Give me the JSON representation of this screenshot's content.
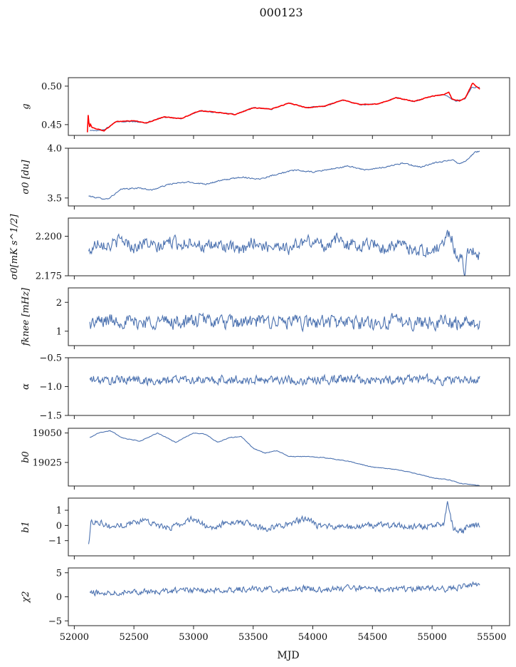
{
  "figure": {
    "title": "000123",
    "xlabel": "MJD"
  },
  "chart_data": [
    {
      "type": "line",
      "ylabel": "g",
      "ylabel_tex": "g",
      "xlim": [
        51950,
        55650
      ],
      "ylim": [
        0.436,
        0.511
      ],
      "yticks": [
        0.45,
        0.5
      ],
      "ytick_labels": [
        "0.45",
        "0.50"
      ],
      "series": [
        {
          "color": "#4c72b0",
          "points": [
            [
              52130,
              0.442
            ],
            [
              52250,
              0.443
            ],
            [
              52350,
              0.454
            ],
            [
              52500,
              0.454
            ],
            [
              52600,
              0.452
            ],
            [
              52750,
              0.46
            ],
            [
              52900,
              0.458
            ],
            [
              53050,
              0.468
            ],
            [
              53200,
              0.466
            ],
            [
              53350,
              0.463
            ],
            [
              53500,
              0.472
            ],
            [
              53650,
              0.47
            ],
            [
              53800,
              0.478
            ],
            [
              53950,
              0.472
            ],
            [
              54100,
              0.474
            ],
            [
              54250,
              0.482
            ],
            [
              54400,
              0.476
            ],
            [
              54550,
              0.477
            ],
            [
              54700,
              0.485
            ],
            [
              54850,
              0.48
            ],
            [
              55000,
              0.487
            ],
            [
              55100,
              0.489
            ],
            [
              55200,
              0.48
            ],
            [
              55280,
              0.484
            ],
            [
              55330,
              0.498
            ],
            [
              55400,
              0.499
            ]
          ]
        },
        {
          "color": "#ff0000",
          "points": [
            [
              52110,
              0.44
            ],
            [
              52118,
              0.468
            ],
            [
              52125,
              0.445
            ],
            [
              52135,
              0.451
            ],
            [
              52150,
              0.446
            ],
            [
              52250,
              0.442
            ],
            [
              52350,
              0.454
            ],
            [
              52500,
              0.455
            ],
            [
              52600,
              0.452
            ],
            [
              52750,
              0.46
            ],
            [
              52900,
              0.458
            ],
            [
              53050,
              0.468
            ],
            [
              53200,
              0.466
            ],
            [
              53350,
              0.463
            ],
            [
              53500,
              0.472
            ],
            [
              53650,
              0.47
            ],
            [
              53800,
              0.478
            ],
            [
              53950,
              0.472
            ],
            [
              54100,
              0.474
            ],
            [
              54250,
              0.482
            ],
            [
              54400,
              0.476
            ],
            [
              54550,
              0.477
            ],
            [
              54700,
              0.485
            ],
            [
              54850,
              0.48
            ],
            [
              55000,
              0.487
            ],
            [
              55100,
              0.489
            ],
            [
              55140,
              0.492
            ],
            [
              55170,
              0.483
            ],
            [
              55230,
              0.481
            ],
            [
              55280,
              0.485
            ],
            [
              55340,
              0.504
            ],
            [
              55400,
              0.496
            ]
          ]
        }
      ]
    },
    {
      "type": "line",
      "ylabel": "σ0 [du]",
      "xlim": [
        51950,
        55650
      ],
      "ylim": [
        3.42,
        4.0
      ],
      "yticks": [
        3.5,
        4.0
      ],
      "ytick_labels": [
        "3.5",
        "4.0"
      ],
      "series": [
        {
          "color": "#4c72b0",
          "points": [
            [
              52120,
              3.52
            ],
            [
              52200,
              3.5
            ],
            [
              52280,
              3.49
            ],
            [
              52400,
              3.59
            ],
            [
              52550,
              3.6
            ],
            [
              52650,
              3.58
            ],
            [
              52800,
              3.64
            ],
            [
              52950,
              3.66
            ],
            [
              53100,
              3.64
            ],
            [
              53250,
              3.68
            ],
            [
              53400,
              3.71
            ],
            [
              53550,
              3.69
            ],
            [
              53700,
              3.74
            ],
            [
              53850,
              3.78
            ],
            [
              54000,
              3.76
            ],
            [
              54150,
              3.79
            ],
            [
              54300,
              3.82
            ],
            [
              54450,
              3.78
            ],
            [
              54600,
              3.81
            ],
            [
              54750,
              3.85
            ],
            [
              54900,
              3.81
            ],
            [
              55050,
              3.86
            ],
            [
              55120,
              3.87
            ],
            [
              55170,
              3.89
            ],
            [
              55230,
              3.84
            ],
            [
              55300,
              3.89
            ],
            [
              55360,
              3.96
            ],
            [
              55400,
              3.97
            ]
          ]
        }
      ]
    },
    {
      "type": "line",
      "ylabel": "σ0[mK s^1/2]",
      "xlim": [
        51950,
        55650
      ],
      "ylim": [
        2.175,
        2.2115
      ],
      "yticks": [
        2.175,
        2.2
      ],
      "ytick_labels": [
        "2.175",
        "2.200"
      ],
      "series": [
        {
          "color": "#4c72b0",
          "points": [
            [
              52120,
              2.1895
            ],
            [
              52200,
              2.197
            ],
            [
              52300,
              2.194
            ],
            [
              52400,
              2.198
            ],
            [
              52500,
              2.193
            ],
            [
              52600,
              2.196
            ],
            [
              52700,
              2.192
            ],
            [
              52800,
              2.197
            ],
            [
              52900,
              2.195
            ],
            [
              53000,
              2.197
            ],
            [
              53100,
              2.192
            ],
            [
              53200,
              2.195
            ],
            [
              53300,
              2.193
            ],
            [
              53400,
              2.19
            ],
            [
              53500,
              2.197
            ],
            [
              53600,
              2.193
            ],
            [
              53700,
              2.195
            ],
            [
              53800,
              2.192
            ],
            [
              53900,
              2.196
            ],
            [
              54000,
              2.197
            ],
            [
              54100,
              2.194
            ],
            [
              54200,
              2.198
            ],
            [
              54300,
              2.195
            ],
            [
              54400,
              2.194
            ],
            [
              54500,
              2.196
            ],
            [
              54600,
              2.192
            ],
            [
              54700,
              2.195
            ],
            [
              54800,
              2.193
            ],
            [
              54900,
              2.191
            ],
            [
              55000,
              2.19
            ],
            [
              55100,
              2.196
            ],
            [
              55150,
              2.203
            ],
            [
              55200,
              2.189
            ],
            [
              55250,
              2.185
            ],
            [
              55270,
              2.175
            ],
            [
              55300,
              2.193
            ],
            [
              55400,
              2.187
            ]
          ]
        }
      ]
    },
    {
      "type": "line",
      "ylabel": "fknee [mHz]",
      "xlim": [
        51950,
        55650
      ],
      "ylim": [
        0.5,
        2.5
      ],
      "yticks": [
        1,
        2
      ],
      "ytick_labels": [
        "1",
        "2"
      ],
      "series": [
        {
          "color": "#4c72b0",
          "points": [
            [
              52130,
              1.25
            ],
            [
              52300,
              1.4
            ],
            [
              52500,
              1.3
            ],
            [
              52700,
              1.35
            ],
            [
              52900,
              1.3
            ],
            [
              53100,
              1.4
            ],
            [
              53300,
              1.28
            ],
            [
              53500,
              1.32
            ],
            [
              53700,
              1.35
            ],
            [
              53900,
              1.28
            ],
            [
              54100,
              1.33
            ],
            [
              54300,
              1.3
            ],
            [
              54500,
              1.27
            ],
            [
              54700,
              1.35
            ],
            [
              54900,
              1.3
            ],
            [
              55100,
              1.32
            ],
            [
              55300,
              1.28
            ],
            [
              55400,
              1.3
            ]
          ]
        }
      ]
    },
    {
      "type": "line",
      "ylabel": "α",
      "xlim": [
        51950,
        55650
      ],
      "ylim": [
        -1.5,
        -0.5
      ],
      "yticks": [
        -1.5,
        -1.0,
        -0.5
      ],
      "ytick_labels": [
        "−1.5",
        "−1.0",
        "−0.5"
      ],
      "series": [
        {
          "color": "#4c72b0",
          "points": [
            [
              52130,
              -0.88
            ],
            [
              52300,
              -0.9
            ],
            [
              52500,
              -0.87
            ],
            [
              52700,
              -0.92
            ],
            [
              52900,
              -0.86
            ],
            [
              53100,
              -0.9
            ],
            [
              53300,
              -0.88
            ],
            [
              53500,
              -0.89
            ],
            [
              53700,
              -0.87
            ],
            [
              53900,
              -0.9
            ],
            [
              54100,
              -0.88
            ],
            [
              54300,
              -0.87
            ],
            [
              54500,
              -0.9
            ],
            [
              54700,
              -0.88
            ],
            [
              54900,
              -0.86
            ],
            [
              55100,
              -0.9
            ],
            [
              55300,
              -0.88
            ],
            [
              55400,
              -0.89
            ]
          ]
        }
      ]
    },
    {
      "type": "line",
      "ylabel": "b0",
      "xlim": [
        51950,
        55650
      ],
      "ylim": [
        19005,
        19054
      ],
      "yticks": [
        19025,
        19050
      ],
      "ytick_labels": [
        "19025",
        "19050"
      ],
      "series": [
        {
          "color": "#4c72b0",
          "points": [
            [
              52130,
              19046
            ],
            [
              52200,
              19050
            ],
            [
              52300,
              19052
            ],
            [
              52400,
              19046
            ],
            [
              52550,
              19043
            ],
            [
              52700,
              19050
            ],
            [
              52850,
              19042
            ],
            [
              53000,
              19050
            ],
            [
              53100,
              19049
            ],
            [
              53200,
              19042
            ],
            [
              53300,
              19046
            ],
            [
              53400,
              19047
            ],
            [
              53500,
              19037
            ],
            [
              53600,
              19033
            ],
            [
              53700,
              19035
            ],
            [
              53800,
              19030
            ],
            [
              53950,
              19030
            ],
            [
              54100,
              19029
            ],
            [
              54300,
              19026
            ],
            [
              54500,
              19021
            ],
            [
              54700,
              19019
            ],
            [
              54850,
              19016
            ],
            [
              55000,
              19012
            ],
            [
              55150,
              19010
            ],
            [
              55250,
              19007
            ],
            [
              55350,
              19006
            ],
            [
              55400,
              19005
            ]
          ]
        }
      ]
    },
    {
      "type": "line",
      "ylabel": "b1",
      "xlim": [
        51950,
        55650
      ],
      "ylim": [
        -2.0,
        1.8
      ],
      "yticks": [
        -1,
        0,
        1
      ],
      "ytick_labels": [
        "−1",
        "0",
        "1"
      ],
      "series": [
        {
          "color": "#4c72b0",
          "points": [
            [
              52120,
              -1.3
            ],
            [
              52140,
              0.2
            ],
            [
              52200,
              0.3
            ],
            [
              52300,
              -0.1
            ],
            [
              52450,
              0.1
            ],
            [
              52600,
              0.4
            ],
            [
              52750,
              -0.2
            ],
            [
              52900,
              0.1
            ],
            [
              53000,
              0.5
            ],
            [
              53150,
              -0.3
            ],
            [
              53300,
              0.3
            ],
            [
              53450,
              0.1
            ],
            [
              53600,
              -0.2
            ],
            [
              53750,
              0.0
            ],
            [
              53950,
              0.5
            ],
            [
              54050,
              -0.1
            ],
            [
              54300,
              -0.1
            ],
            [
              54500,
              0.0
            ],
            [
              54700,
              0.0
            ],
            [
              54900,
              -0.1
            ],
            [
              55100,
              0.1
            ],
            [
              55130,
              1.5
            ],
            [
              55180,
              -0.3
            ],
            [
              55260,
              -0.4
            ],
            [
              55300,
              0.0
            ],
            [
              55400,
              0.0
            ]
          ]
        }
      ]
    },
    {
      "type": "line",
      "ylabel": "χ2",
      "xlim": [
        51950,
        55650
      ],
      "ylim": [
        -6,
        6
      ],
      "yticks": [
        -5,
        0,
        5
      ],
      "ytick_labels": [
        "−5",
        "0",
        "5"
      ],
      "xticks": [
        52000,
        52500,
        53000,
        53500,
        54000,
        54500,
        55000,
        55500
      ],
      "xtick_labels": [
        "52000",
        "52500",
        "53000",
        "53500",
        "54000",
        "54500",
        "55000",
        "55500"
      ],
      "series": [
        {
          "color": "#4c72b0",
          "points": [
            [
              52130,
              0.8
            ],
            [
              52300,
              0.9
            ],
            [
              52500,
              1.2
            ],
            [
              52700,
              0.9
            ],
            [
              52900,
              1.5
            ],
            [
              53100,
              1.2
            ],
            [
              53300,
              1.5
            ],
            [
              53500,
              1.7
            ],
            [
              53700,
              1.4
            ],
            [
              53900,
              1.8
            ],
            [
              54100,
              1.5
            ],
            [
              54300,
              1.9
            ],
            [
              54500,
              1.6
            ],
            [
              54700,
              1.5
            ],
            [
              54900,
              1.8
            ],
            [
              55100,
              1.6
            ],
            [
              55300,
              2.3
            ],
            [
              55400,
              2.5
            ]
          ]
        }
      ]
    }
  ]
}
